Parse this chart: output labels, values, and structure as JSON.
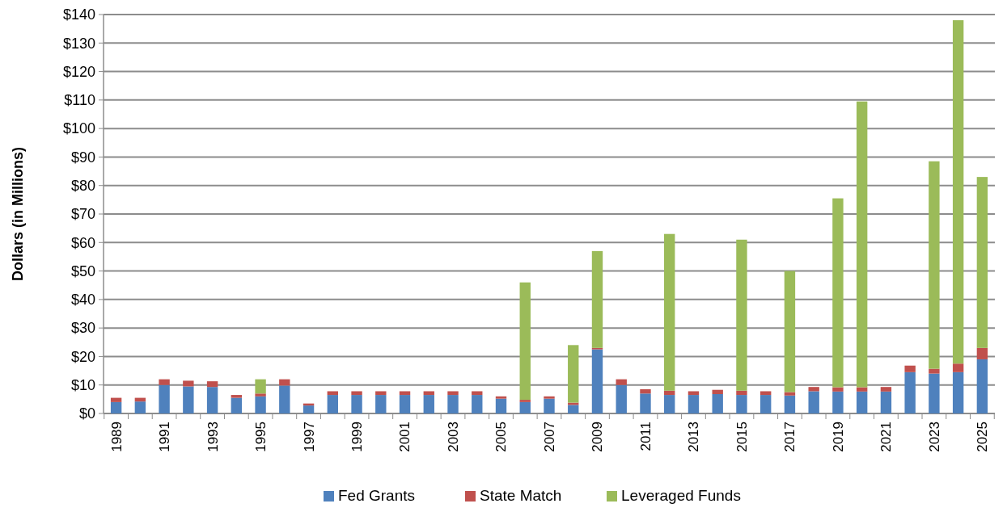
{
  "chart_data": {
    "type": "bar",
    "stacked": true,
    "ylabel": "Dollars (in Millions)",
    "categories": [
      "1989",
      null,
      "1991",
      null,
      "1993",
      null,
      "1995",
      null,
      "1997",
      null,
      "1999",
      null,
      "2001",
      null,
      "2003",
      null,
      "2005",
      null,
      "2007",
      null,
      "2009",
      null,
      "2011",
      null,
      "2013",
      null,
      "2015",
      null,
      "2017",
      null,
      "2019",
      null,
      "2021",
      null,
      "2023",
      null,
      "2025"
    ],
    "series": [
      {
        "name": "Fed Grants",
        "color": "#4f81bd",
        "values": [
          4,
          4.2,
          10,
          9.5,
          9.3,
          5.5,
          6,
          9.8,
          2.8,
          6.5,
          6.5,
          6.5,
          6.5,
          6.5,
          6.5,
          6.5,
          5.2,
          4,
          5.2,
          3,
          22.5,
          10,
          7,
          6.5,
          6.5,
          6.8,
          6.5,
          6.5,
          6.3,
          7.8,
          7.7,
          7.7,
          7.7,
          14.5,
          14,
          14.5,
          19
        ]
      },
      {
        "name": "State Match",
        "color": "#c0504d",
        "values": [
          1.5,
          1.3,
          2,
          2,
          2,
          1,
          1,
          2.2,
          0.7,
          1.3,
          1.3,
          1.3,
          1.3,
          1.3,
          1.3,
          1.3,
          0.8,
          0.8,
          0.8,
          0.8,
          0.5,
          2,
          1.5,
          1.5,
          1.3,
          1.5,
          1.5,
          1.3,
          1.2,
          1.5,
          1.5,
          1.5,
          1.6,
          2.3,
          1.7,
          3,
          4
        ]
      },
      {
        "name": "Leveraged Funds",
        "color": "#9bbb59",
        "values": [
          0,
          0,
          0,
          0,
          0,
          0,
          5,
          0,
          0,
          0,
          0,
          0,
          0,
          0,
          0,
          0,
          0,
          41.2,
          0,
          20.2,
          34,
          0,
          0,
          55,
          0,
          0,
          53,
          0,
          42.5,
          0,
          66.3,
          100.3,
          0,
          0,
          72.8,
          120.5,
          60
        ]
      }
    ],
    "ylim": [
      0,
      140
    ],
    "yticks": [
      {
        "value": 0,
        "label": "$0"
      },
      {
        "value": 10,
        "label": "$10"
      },
      {
        "value": 20,
        "label": "$20"
      },
      {
        "value": 30,
        "label": "$30"
      },
      {
        "value": 40,
        "label": "$40"
      },
      {
        "value": 50,
        "label": "$50"
      },
      {
        "value": 60,
        "label": "$60"
      },
      {
        "value": 70,
        "label": "$70"
      },
      {
        "value": 80,
        "label": "$80"
      },
      {
        "value": 90,
        "label": "$90"
      },
      {
        "value": 100,
        "label": "$100"
      },
      {
        "value": 110,
        "label": "$110"
      },
      {
        "value": 120,
        "label": "$120"
      },
      {
        "value": 130,
        "label": "$130"
      },
      {
        "value": 140,
        "label": "$140"
      }
    ],
    "grid": "y",
    "legend": "bottom"
  }
}
